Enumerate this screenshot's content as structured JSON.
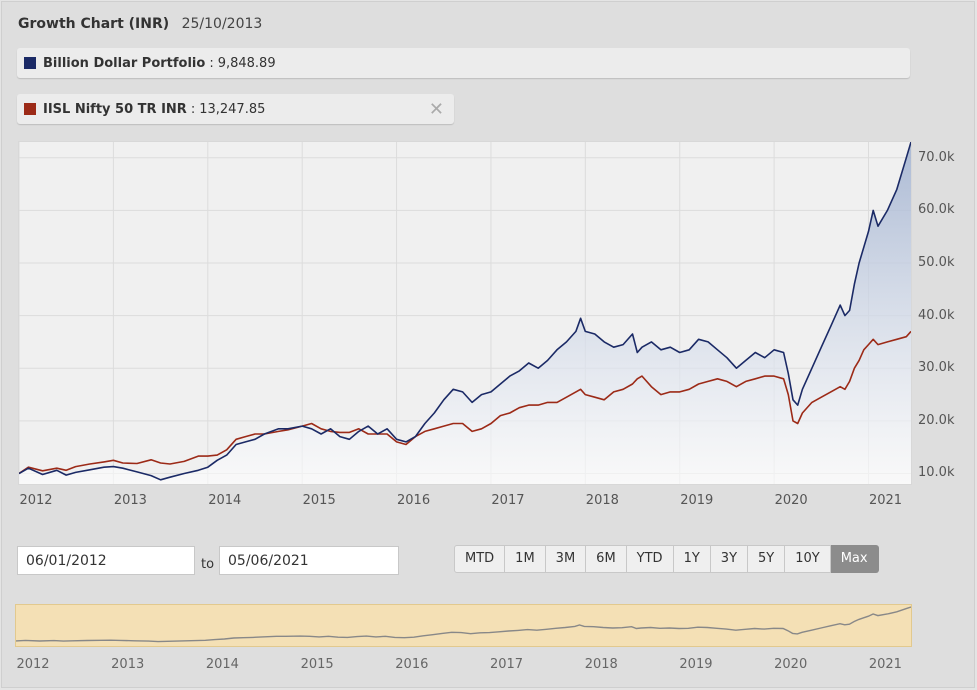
{
  "header": {
    "title": "Growth Chart (INR)",
    "date": "25/10/2013"
  },
  "legend": [
    {
      "name": "Billion Dollar Portfolio",
      "separator": ":",
      "value": "9,848.89",
      "color": "#1b2a66"
    },
    {
      "name": "IISL Nifty 50 TR INR",
      "separator": ":",
      "value": "13,247.85",
      "color": "#9c2a17",
      "close_icon": "close-icon"
    }
  ],
  "range": {
    "from": "06/01/2012",
    "to_label": "to",
    "to": "05/06/2021"
  },
  "periods": [
    "MTD",
    "1M",
    "3M",
    "6M",
    "YTD",
    "1Y",
    "3Y",
    "5Y",
    "10Y",
    "Max"
  ],
  "active_period": "Max",
  "navigator": {
    "fill": "#f4e0b5",
    "line": "#888888"
  },
  "chart_data": {
    "type": "line",
    "x_range": [
      2012.0,
      2021.45
    ],
    "ylim": [
      8000,
      73000
    ],
    "y_ticks": [
      "70.0k",
      "60.0k",
      "50.0k",
      "40.0k",
      "30.0k",
      "20.0k",
      "10.0k"
    ],
    "y_tick_values": [
      70000,
      60000,
      50000,
      40000,
      30000,
      20000,
      10000
    ],
    "x_ticks": [
      "2012",
      "2013",
      "2014",
      "2015",
      "2016",
      "2017",
      "2018",
      "2019",
      "2020",
      "2021"
    ],
    "x_tick_values": [
      2012,
      2013,
      2014,
      2015,
      2016,
      2017,
      2018,
      2019,
      2020,
      2021
    ],
    "grid": true,
    "series": [
      {
        "name": "Billion Dollar Portfolio",
        "color": "#1b2a66",
        "area": true,
        "points": [
          [
            2012.0,
            10000
          ],
          [
            2012.1,
            11000
          ],
          [
            2012.25,
            9800
          ],
          [
            2012.4,
            10600
          ],
          [
            2012.5,
            9700
          ],
          [
            2012.6,
            10200
          ],
          [
            2012.75,
            10700
          ],
          [
            2012.9,
            11200
          ],
          [
            2013.0,
            11300
          ],
          [
            2013.1,
            11000
          ],
          [
            2013.25,
            10300
          ],
          [
            2013.4,
            9600
          ],
          [
            2013.5,
            8800
          ],
          [
            2013.6,
            9300
          ],
          [
            2013.75,
            10000
          ],
          [
            2013.9,
            10600
          ],
          [
            2014.0,
            11200
          ],
          [
            2014.1,
            12500
          ],
          [
            2014.2,
            13500
          ],
          [
            2014.3,
            15500
          ],
          [
            2014.4,
            16000
          ],
          [
            2014.5,
            16500
          ],
          [
            2014.6,
            17500
          ],
          [
            2014.75,
            18500
          ],
          [
            2014.85,
            18500
          ],
          [
            2015.0,
            19000
          ],
          [
            2015.1,
            18500
          ],
          [
            2015.2,
            17500
          ],
          [
            2015.3,
            18500
          ],
          [
            2015.4,
            17000
          ],
          [
            2015.5,
            16500
          ],
          [
            2015.6,
            18000
          ],
          [
            2015.7,
            19000
          ],
          [
            2015.8,
            17500
          ],
          [
            2015.9,
            18500
          ],
          [
            2016.0,
            16500
          ],
          [
            2016.1,
            16000
          ],
          [
            2016.2,
            17000
          ],
          [
            2016.3,
            19500
          ],
          [
            2016.4,
            21500
          ],
          [
            2016.5,
            24000
          ],
          [
            2016.6,
            26000
          ],
          [
            2016.7,
            25500
          ],
          [
            2016.8,
            23500
          ],
          [
            2016.9,
            25000
          ],
          [
            2017.0,
            25500
          ],
          [
            2017.1,
            27000
          ],
          [
            2017.2,
            28500
          ],
          [
            2017.3,
            29500
          ],
          [
            2017.4,
            31000
          ],
          [
            2017.5,
            30000
          ],
          [
            2017.6,
            31500
          ],
          [
            2017.7,
            33500
          ],
          [
            2017.8,
            35000
          ],
          [
            2017.9,
            37000
          ],
          [
            2017.95,
            39500
          ],
          [
            2018.0,
            37000
          ],
          [
            2018.1,
            36500
          ],
          [
            2018.2,
            35000
          ],
          [
            2018.3,
            34000
          ],
          [
            2018.4,
            34500
          ],
          [
            2018.5,
            36500
          ],
          [
            2018.55,
            33000
          ],
          [
            2018.6,
            34000
          ],
          [
            2018.7,
            35000
          ],
          [
            2018.8,
            33500
          ],
          [
            2018.9,
            34000
          ],
          [
            2019.0,
            33000
          ],
          [
            2019.1,
            33500
          ],
          [
            2019.2,
            35500
          ],
          [
            2019.3,
            35000
          ],
          [
            2019.4,
            33500
          ],
          [
            2019.5,
            32000
          ],
          [
            2019.6,
            30000
          ],
          [
            2019.7,
            31500
          ],
          [
            2019.8,
            33000
          ],
          [
            2019.9,
            32000
          ],
          [
            2020.0,
            33500
          ],
          [
            2020.1,
            33000
          ],
          [
            2020.15,
            29000
          ],
          [
            2020.2,
            24000
          ],
          [
            2020.25,
            23000
          ],
          [
            2020.3,
            26000
          ],
          [
            2020.4,
            30000
          ],
          [
            2020.5,
            34000
          ],
          [
            2020.6,
            38000
          ],
          [
            2020.7,
            42000
          ],
          [
            2020.75,
            40000
          ],
          [
            2020.8,
            41000
          ],
          [
            2020.85,
            46000
          ],
          [
            2020.9,
            50000
          ],
          [
            2020.95,
            53000
          ],
          [
            2021.0,
            56000
          ],
          [
            2021.05,
            60000
          ],
          [
            2021.1,
            57000
          ],
          [
            2021.2,
            60000
          ],
          [
            2021.3,
            64000
          ],
          [
            2021.4,
            70000
          ],
          [
            2021.45,
            73000
          ]
        ]
      },
      {
        "name": "IISL Nifty 50 TR INR",
        "color": "#9c2a17",
        "area": false,
        "points": [
          [
            2012.0,
            10000
          ],
          [
            2012.1,
            11200
          ],
          [
            2012.25,
            10500
          ],
          [
            2012.4,
            11000
          ],
          [
            2012.5,
            10600
          ],
          [
            2012.6,
            11300
          ],
          [
            2012.75,
            11800
          ],
          [
            2012.9,
            12200
          ],
          [
            2013.0,
            12500
          ],
          [
            2013.1,
            12000
          ],
          [
            2013.25,
            11900
          ],
          [
            2013.4,
            12600
          ],
          [
            2013.5,
            12000
          ],
          [
            2013.6,
            11800
          ],
          [
            2013.75,
            12300
          ],
          [
            2013.9,
            13300
          ],
          [
            2014.0,
            13300
          ],
          [
            2014.1,
            13500
          ],
          [
            2014.2,
            14500
          ],
          [
            2014.3,
            16500
          ],
          [
            2014.4,
            17000
          ],
          [
            2014.5,
            17500
          ],
          [
            2014.6,
            17500
          ],
          [
            2014.75,
            18000
          ],
          [
            2014.85,
            18300
          ],
          [
            2015.0,
            19000
          ],
          [
            2015.1,
            19500
          ],
          [
            2015.2,
            18500
          ],
          [
            2015.3,
            18000
          ],
          [
            2015.4,
            17800
          ],
          [
            2015.5,
            17800
          ],
          [
            2015.6,
            18500
          ],
          [
            2015.7,
            17500
          ],
          [
            2015.8,
            17500
          ],
          [
            2015.9,
            17500
          ],
          [
            2016.0,
            16000
          ],
          [
            2016.1,
            15500
          ],
          [
            2016.2,
            17000
          ],
          [
            2016.3,
            18000
          ],
          [
            2016.4,
            18500
          ],
          [
            2016.5,
            19000
          ],
          [
            2016.6,
            19500
          ],
          [
            2016.7,
            19500
          ],
          [
            2016.8,
            18000
          ],
          [
            2016.9,
            18500
          ],
          [
            2017.0,
            19500
          ],
          [
            2017.1,
            21000
          ],
          [
            2017.2,
            21500
          ],
          [
            2017.3,
            22500
          ],
          [
            2017.4,
            23000
          ],
          [
            2017.5,
            23000
          ],
          [
            2017.6,
            23500
          ],
          [
            2017.7,
            23500
          ],
          [
            2017.8,
            24500
          ],
          [
            2017.9,
            25500
          ],
          [
            2017.95,
            26000
          ],
          [
            2018.0,
            25000
          ],
          [
            2018.1,
            24500
          ],
          [
            2018.2,
            24000
          ],
          [
            2018.3,
            25500
          ],
          [
            2018.4,
            26000
          ],
          [
            2018.5,
            27000
          ],
          [
            2018.55,
            28000
          ],
          [
            2018.6,
            28500
          ],
          [
            2018.7,
            26500
          ],
          [
            2018.8,
            25000
          ],
          [
            2018.9,
            25500
          ],
          [
            2019.0,
            25500
          ],
          [
            2019.1,
            26000
          ],
          [
            2019.2,
            27000
          ],
          [
            2019.3,
            27500
          ],
          [
            2019.4,
            28000
          ],
          [
            2019.5,
            27500
          ],
          [
            2019.6,
            26500
          ],
          [
            2019.7,
            27500
          ],
          [
            2019.8,
            28000
          ],
          [
            2019.9,
            28500
          ],
          [
            2020.0,
            28500
          ],
          [
            2020.1,
            28000
          ],
          [
            2020.15,
            25000
          ],
          [
            2020.2,
            20000
          ],
          [
            2020.25,
            19500
          ],
          [
            2020.3,
            21500
          ],
          [
            2020.4,
            23500
          ],
          [
            2020.5,
            24500
          ],
          [
            2020.6,
            25500
          ],
          [
            2020.7,
            26500
          ],
          [
            2020.75,
            26000
          ],
          [
            2020.8,
            27500
          ],
          [
            2020.85,
            30000
          ],
          [
            2020.9,
            31500
          ],
          [
            2020.95,
            33500
          ],
          [
            2021.0,
            34500
          ],
          [
            2021.05,
            35500
          ],
          [
            2021.1,
            34500
          ],
          [
            2021.2,
            35000
          ],
          [
            2021.3,
            35500
          ],
          [
            2021.4,
            36000
          ],
          [
            2021.45,
            37000
          ]
        ]
      }
    ]
  }
}
